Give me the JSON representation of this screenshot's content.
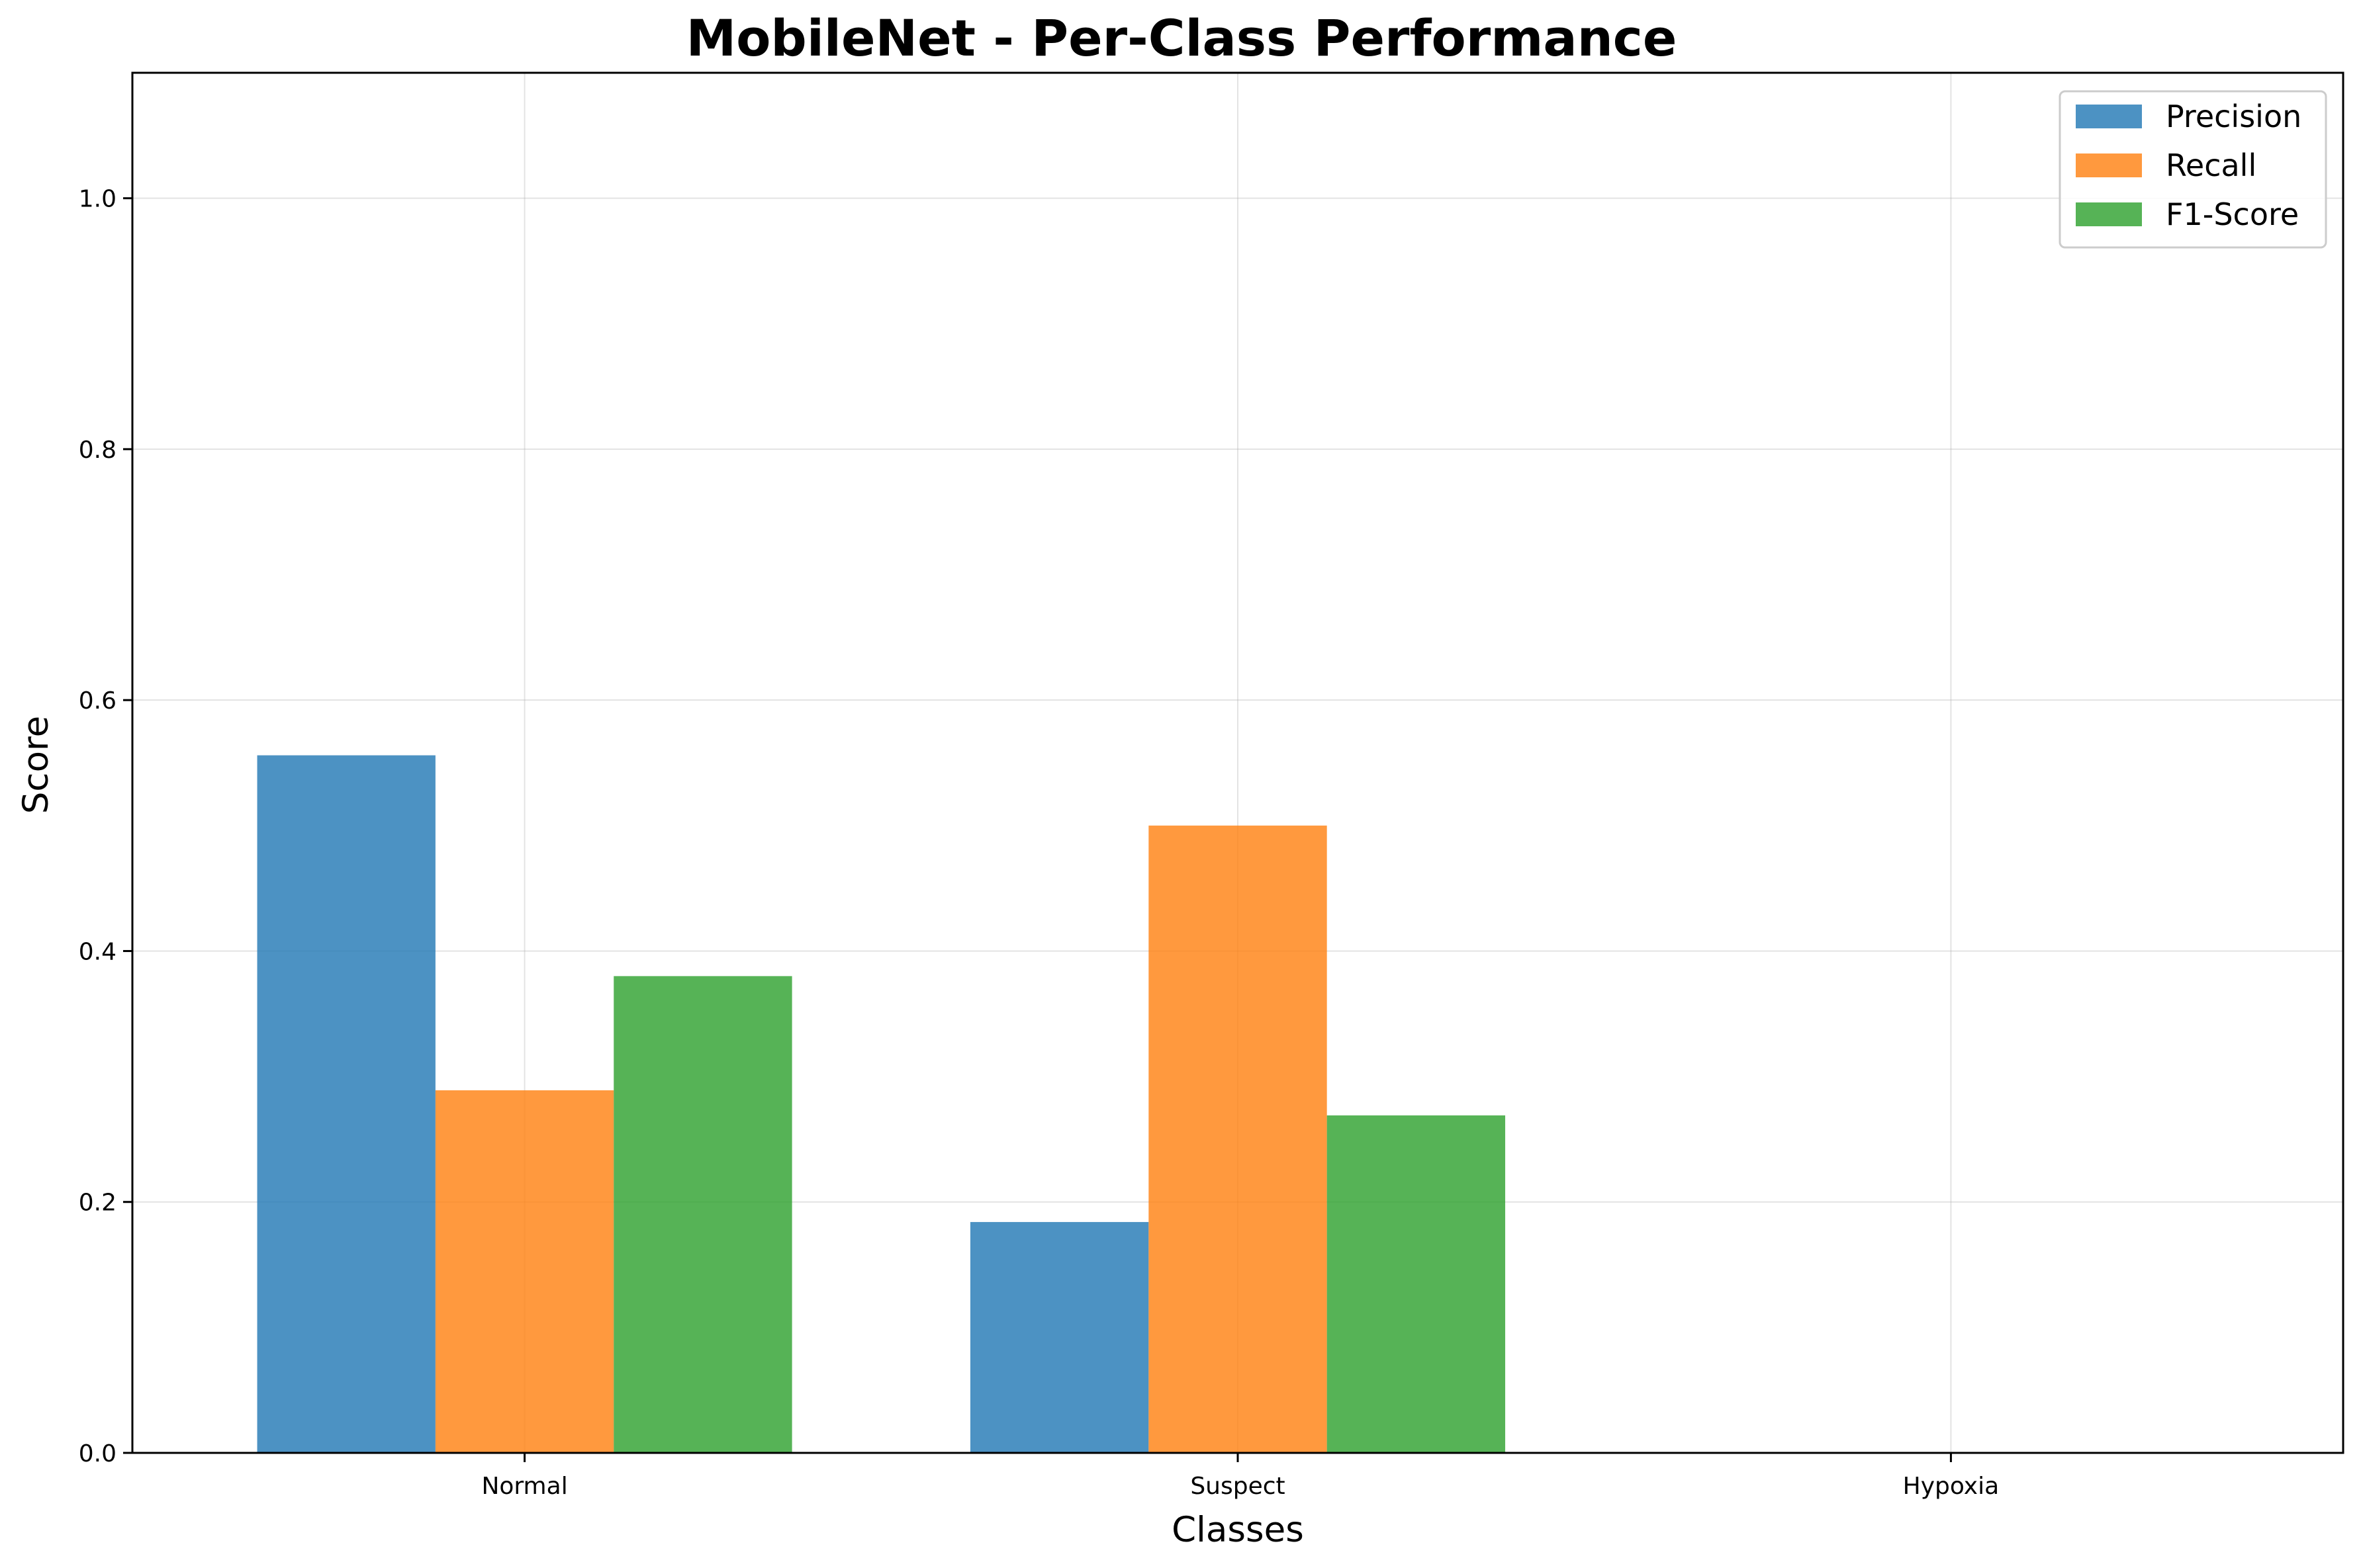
{
  "chart_data": {
    "type": "bar",
    "title": "MobileNet - Per-Class Performance",
    "xlabel": "Classes",
    "ylabel": "Score",
    "categories": [
      "Normal",
      "Suspect",
      "Hypoxia"
    ],
    "ylim": [
      0,
      1.1
    ],
    "yticks": [
      0.0,
      0.2,
      0.4,
      0.6,
      0.8,
      1.0
    ],
    "ytick_labels": [
      "0.0",
      "0.2",
      "0.4",
      "0.6",
      "0.8",
      "1.0"
    ],
    "grid": true,
    "legend_position": "top-right",
    "series": [
      {
        "name": "Precision",
        "color": "#1f77b4",
        "values": [
          0.556,
          0.184,
          0.0
        ]
      },
      {
        "name": "Recall",
        "color": "#ff7f0e",
        "values": [
          0.289,
          0.5,
          0.0
        ]
      },
      {
        "name": "F1-Score",
        "color": "#2ca02c",
        "values": [
          0.38,
          0.269,
          0.0
        ]
      }
    ]
  }
}
